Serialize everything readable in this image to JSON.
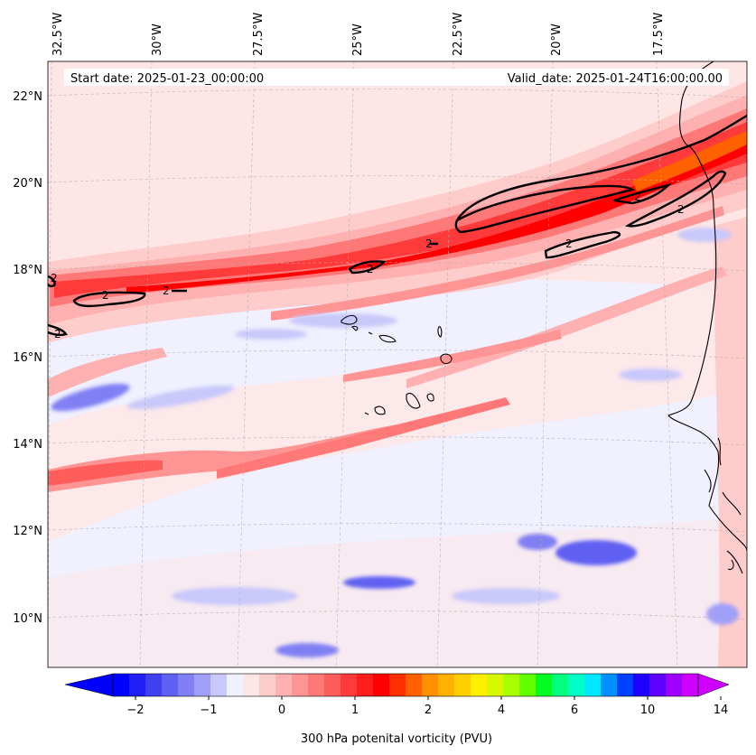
{
  "header": {
    "start_date": "Start date: 2025-01-23_00:00:00",
    "valid_date": "Valid_date: 2025-01-24T16:00:00.00"
  },
  "longitude_labels": [
    "32.5°W",
    "30°W",
    "27.5°W",
    "25°W",
    "22.5°W",
    "20°W",
    "17.5°W"
  ],
  "latitude_labels": [
    "22°N",
    "20°N",
    "18°N",
    "16°N",
    "14°N",
    "12°N",
    "10°N"
  ],
  "contour_label": "2",
  "colorbar": {
    "title": "300 hPa potenital vorticity (PVU)",
    "tick_labels": [
      "−2",
      "−1",
      "0",
      "1",
      "2",
      "4",
      "6",
      "10",
      "14"
    ],
    "colors": [
      "#0000ff",
      "#2020f6",
      "#4040f0",
      "#6060f2",
      "#8080f4",
      "#a0a0f8",
      "#c8c8fa",
      "#f0f0ff",
      "#ffe6e6",
      "#ffcccc",
      "#ffb0b0",
      "#ff9494",
      "#ff7878",
      "#ff5c5c",
      "#ff3a3a",
      "#ff1e1e",
      "#ff0000",
      "#ff3000",
      "#ff6000",
      "#ff9000",
      "#ffb000",
      "#ffd000",
      "#fff000",
      "#d8f800",
      "#a8ff00",
      "#60ff00",
      "#00ff20",
      "#00ff80",
      "#00ffc8",
      "#00e8ff",
      "#0090ff",
      "#0040ff",
      "#2000ff",
      "#6000ff",
      "#a000ff",
      "#d000ff"
    ],
    "under_color": "#0000ff",
    "over_color": "#d000ff"
  }
}
